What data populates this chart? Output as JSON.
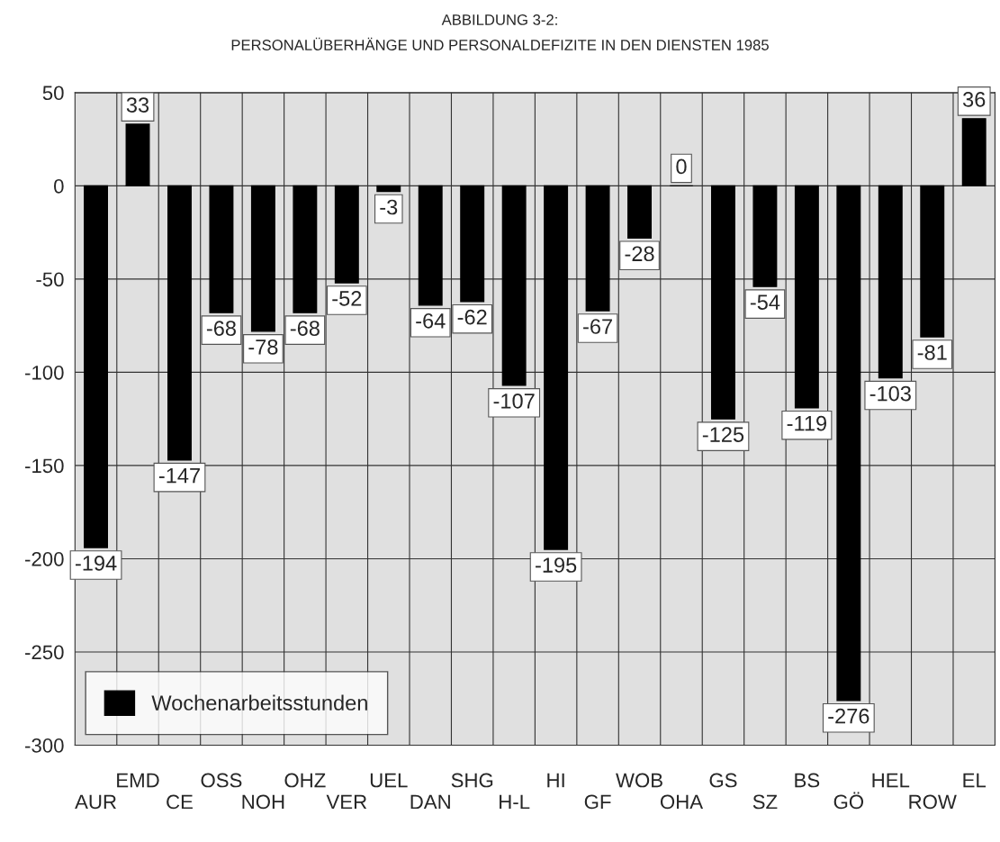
{
  "chart_data": {
    "type": "bar",
    "title": "ABBILDUNG 3-2:",
    "subtitle": "PERSONALÜBERHÄNGE UND PERSONALDEFIZITE IN DEN DIENSTEN 1985",
    "categories": [
      "AUR",
      "EMD",
      "CE",
      "OSS",
      "NOH",
      "OHZ",
      "VER",
      "UEL",
      "DAN",
      "SHG",
      "H-L",
      "HI",
      "GF",
      "WOB",
      "OHA",
      "GS",
      "SZ",
      "BS",
      "GÖ",
      "HEL",
      "ROW",
      "EL"
    ],
    "series": [
      {
        "name": "Wochenarbeitsstunden",
        "color": "#000000",
        "values": [
          -194,
          33,
          -147,
          -68,
          -78,
          -68,
          -52,
          -3,
          -64,
          -62,
          -107,
          -195,
          -67,
          -28,
          0,
          -125,
          -54,
          -119,
          -276,
          -103,
          -81,
          36
        ]
      }
    ],
    "ylim": [
      -300,
      50
    ],
    "yticks": [
      -300,
      -250,
      -200,
      -150,
      -100,
      -50,
      0,
      50
    ],
    "grid": true,
    "legend": "bottom left",
    "data_labels": true
  }
}
